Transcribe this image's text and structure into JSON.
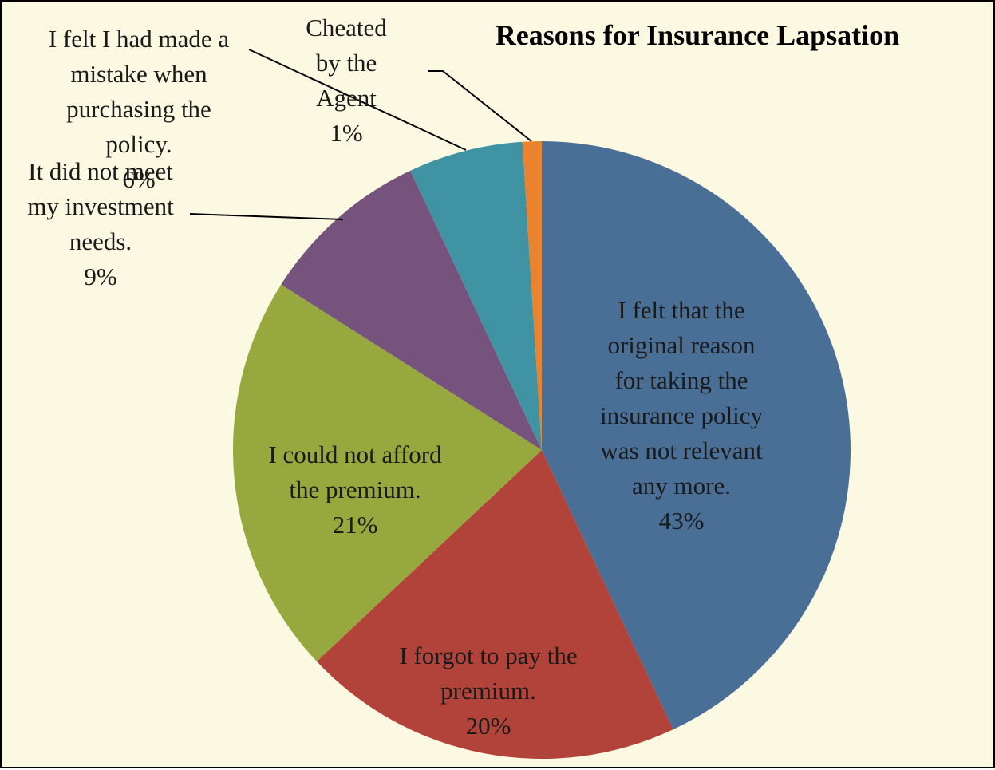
{
  "chart_data": {
    "type": "pie",
    "title": "Reasons for Insurance Lapsation",
    "slices": [
      {
        "label": "I felt that the original reason for taking the insurance policy was not relevant any more.",
        "label_lines": [
          "I felt that the",
          "original reason",
          "for taking the",
          "insurance policy",
          "was not relevant",
          "any more.",
          "43%"
        ],
        "value": 43,
        "color": "#4a6f97"
      },
      {
        "label": "I forgot to pay the premium.",
        "label_lines": [
          "I forgot to pay the",
          "premium.",
          "20%"
        ],
        "value": 20,
        "color": "#b2433a"
      },
      {
        "label": "I could not afford the premium.",
        "label_lines": [
          "I could not afford",
          "the premium.",
          "21%"
        ],
        "value": 21,
        "color": "#97a83f"
      },
      {
        "label": "It did not meet my investment needs.",
        "label_lines": [
          "It did not meet",
          "my investment",
          "needs.",
          "9%"
        ],
        "value": 9,
        "color": "#76537d"
      },
      {
        "label": "I felt I had made a mistake when purchasing the policy.",
        "label_lines": [
          "I felt I had made a",
          "mistake when",
          "purchasing the",
          "policy.",
          "6%"
        ],
        "value": 6,
        "color": "#3f93a3"
      },
      {
        "label": "Cheated by the Agent",
        "label_lines": [
          "Cheated",
          "by the",
          "Agent",
          "1%"
        ],
        "value": 1,
        "color": "#e9832e"
      }
    ],
    "legend": "none",
    "data_labels": "category name and percentage"
  }
}
